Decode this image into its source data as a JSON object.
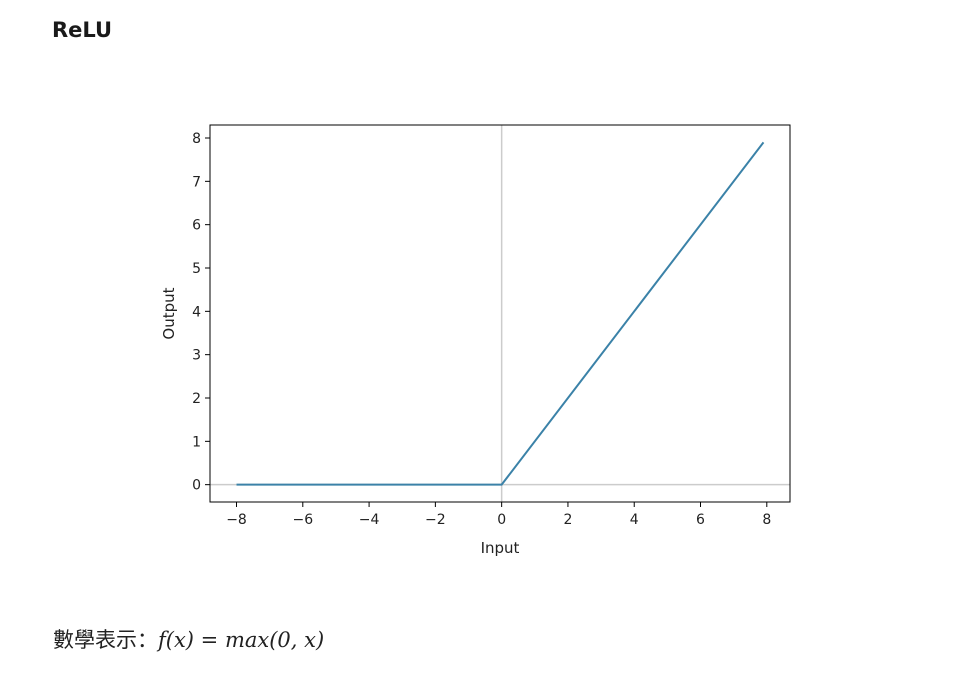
{
  "page": {
    "section_title": "ReLU",
    "formula_label": "數學表示：",
    "formula_expr": "f(x) = max(0, x)"
  },
  "chart_data": {
    "type": "line",
    "title": "",
    "xlabel": "Input",
    "ylabel": "Output",
    "xlim": [
      -8.8,
      8.7
    ],
    "ylim": [
      -0.4,
      8.3
    ],
    "xticks": [
      -8,
      -6,
      -4,
      -2,
      0,
      2,
      4,
      6,
      8
    ],
    "yticks": [
      0,
      1,
      2,
      3,
      4,
      5,
      6,
      7,
      8
    ],
    "xtick_labels": [
      "−8",
      "−6",
      "−4",
      "−2",
      "0",
      "2",
      "4",
      "6",
      "8"
    ],
    "ytick_labels": [
      "0",
      "1",
      "2",
      "3",
      "4",
      "5",
      "6",
      "7",
      "8"
    ],
    "grid": false,
    "reference_lines": {
      "x": 0,
      "y": 0,
      "color": "#cccccc"
    },
    "series": [
      {
        "color": "#3b82a8",
        "x": [
          -8,
          0,
          7.9
        ],
        "y": [
          0,
          0,
          7.9
        ]
      }
    ]
  }
}
